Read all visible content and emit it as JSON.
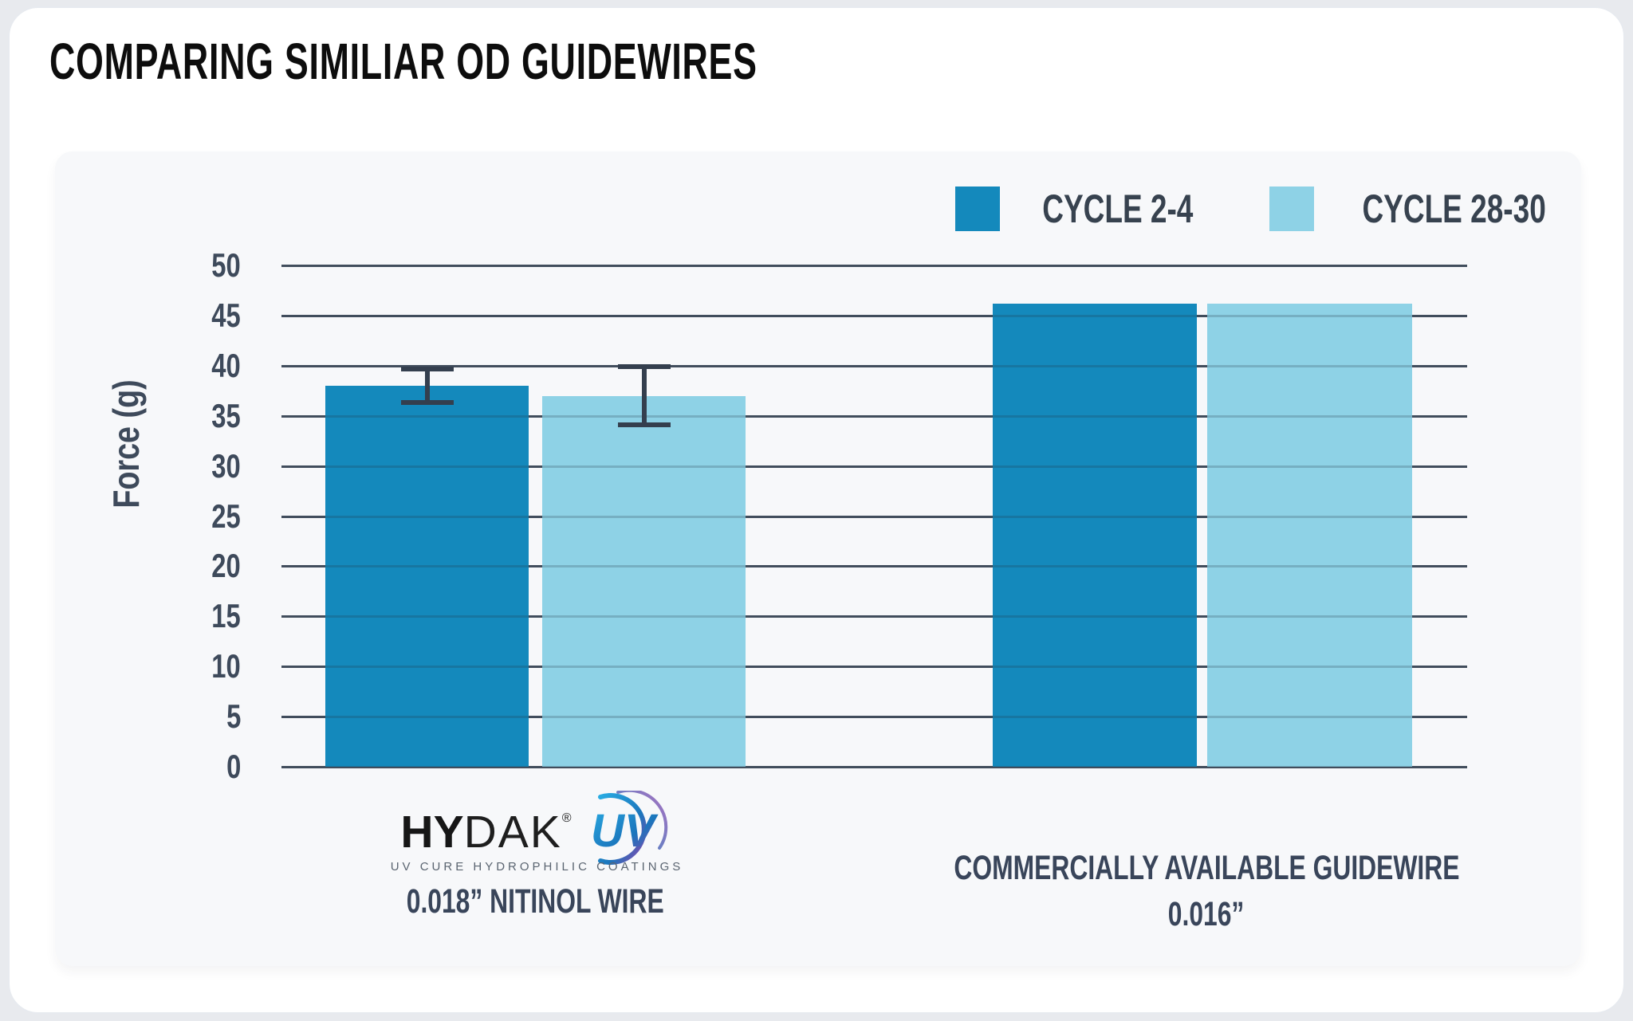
{
  "page": {
    "title": "COMPARING SIMILIAR OD GUIDEWIRES"
  },
  "chart_data": {
    "type": "bar",
    "title": "COMPARING SIMILIAR OD GUIDEWIRES",
    "xlabel": "",
    "ylabel": "Force (g)",
    "ylim": [
      0,
      50
    ],
    "ytick_step": 5,
    "grid": true,
    "legend_position": "top-right",
    "categories": [
      "HYDAK UV 0.018” NITINOL WIRE",
      "COMMERCIALLY AVAILABLE GUIDEWIRE 0.016”"
    ],
    "series": [
      {
        "name": "CYCLE 2-4",
        "color": "#1489BC",
        "values": [
          38.0,
          46.2
        ],
        "error": [
          1.7,
          null
        ]
      },
      {
        "name": "CYCLE 28-30",
        "color": "#8ED2E6",
        "values": [
          37.0,
          46.2
        ],
        "error": [
          2.9,
          null
        ]
      }
    ]
  },
  "legend": {
    "items": [
      {
        "label": "CYCLE 2-4",
        "color": "#1489BC"
      },
      {
        "label": "CYCLE 28-30",
        "color": "#8ED2E6"
      }
    ]
  },
  "axis": {
    "ylabel": "Force (g)"
  },
  "group1": {
    "logo": {
      "hy": "HY",
      "dak": "DAK",
      "registered": "®",
      "uv": "UV",
      "caption": "UV CURE HYDROPHILIC COATINGS"
    },
    "label": "0.018” NITINOL WIRE"
  },
  "group2": {
    "label_line1": "COMMERCIALLY AVAILABLE GUIDEWIRE",
    "label_line2": "0.016”"
  },
  "colors": {
    "dark_bar": "#1489BC",
    "light_bar": "#8ED2E6",
    "gridline": "#4A5563",
    "gridline_overlay": "rgba(38,50,70,0.22)",
    "error_bar": "#343F4E",
    "panel_bg": "#F7F8FA",
    "card_bg": "#FFFFFF",
    "page_bg": "#E8EAEE",
    "navy_text": "#3E4A5B",
    "title_text": "#0D0D0D"
  }
}
